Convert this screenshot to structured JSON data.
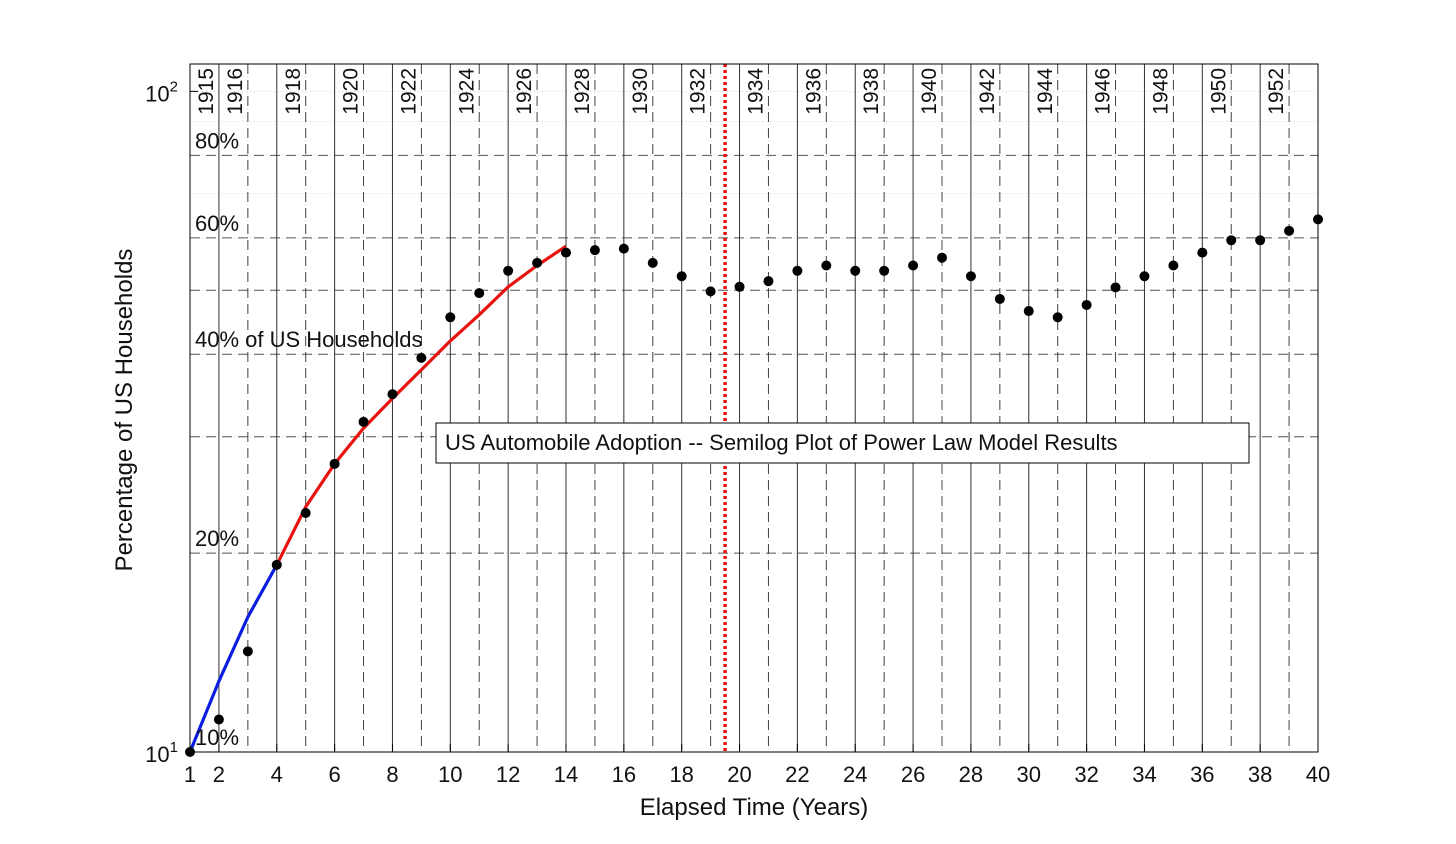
{
  "chart_data": {
    "type": "scatter",
    "title": "US Automobile Adoption -- Semilog Plot of Power Law Model Results",
    "xlabel": "Elapsed Time (Years)",
    "ylabel": "Percentage of US Households",
    "yscale": "log",
    "xlim": [
      1,
      40
    ],
    "ylim": [
      10,
      110
    ],
    "x_ticks": [
      {
        "value": 1,
        "label": "1"
      },
      {
        "value": 2,
        "label": "2"
      },
      {
        "value": 4,
        "label": "4"
      },
      {
        "value": 6,
        "label": "6"
      },
      {
        "value": 8,
        "label": "8"
      },
      {
        "value": 10,
        "label": "10"
      },
      {
        "value": 12,
        "label": "12"
      },
      {
        "value": 14,
        "label": "14"
      },
      {
        "value": 16,
        "label": "16"
      },
      {
        "value": 18,
        "label": "18"
      },
      {
        "value": 20,
        "label": "20"
      },
      {
        "value": 22,
        "label": "22"
      },
      {
        "value": 24,
        "label": "24"
      },
      {
        "value": 26,
        "label": "26"
      },
      {
        "value": 28,
        "label": "28"
      },
      {
        "value": 30,
        "label": "30"
      },
      {
        "value": 32,
        "label": "32"
      },
      {
        "value": 34,
        "label": "34"
      },
      {
        "value": 36,
        "label": "36"
      },
      {
        "value": 38,
        "label": "38"
      },
      {
        "value": 40,
        "label": "40"
      }
    ],
    "y_ticks": [
      {
        "value": 10,
        "base": "10",
        "exp": "1"
      },
      {
        "value": 100,
        "base": "10",
        "exp": "2"
      }
    ],
    "year_lines": [
      {
        "x": 1,
        "label": "1915"
      },
      {
        "x": 2,
        "label": "1916"
      },
      {
        "x": 4,
        "label": "1918"
      },
      {
        "x": 6,
        "label": "1920"
      },
      {
        "x": 8,
        "label": "1922"
      },
      {
        "x": 10,
        "label": "1924"
      },
      {
        "x": 12,
        "label": "1926"
      },
      {
        "x": 14,
        "label": "1928"
      },
      {
        "x": 16,
        "label": "1930"
      },
      {
        "x": 18,
        "label": "1932"
      },
      {
        "x": 20,
        "label": "1934"
      },
      {
        "x": 22,
        "label": "1936"
      },
      {
        "x": 24,
        "label": "1938"
      },
      {
        "x": 26,
        "label": "1940"
      },
      {
        "x": 28,
        "label": "1942"
      },
      {
        "x": 30,
        "label": "1944"
      },
      {
        "x": 32,
        "label": "1946"
      },
      {
        "x": 34,
        "label": "1948"
      },
      {
        "x": 36,
        "label": "1950"
      },
      {
        "x": 38,
        "label": "1952"
      }
    ],
    "pct_lines": [
      {
        "y": 10,
        "label": "10%"
      },
      {
        "y": 20,
        "label": "20%"
      },
      {
        "y": 40,
        "label": "40% of US Households"
      },
      {
        "y": 60,
        "label": "60%"
      },
      {
        "y": 80,
        "label": "80%"
      }
    ],
    "dashed_horizontal": [
      30,
      50
    ],
    "red_marker_x": 19.5,
    "series": [
      {
        "type": "scatter",
        "color": "#000000",
        "x": [
          1,
          2,
          3,
          4,
          5,
          6,
          7,
          8,
          9,
          10,
          11,
          12,
          13,
          14,
          15,
          16,
          17,
          18,
          19,
          20,
          21,
          22,
          23,
          24,
          25,
          26,
          27,
          28,
          29,
          30,
          31,
          32,
          33,
          34,
          35,
          36,
          37,
          38,
          39,
          40
        ],
        "y": [
          10,
          11.2,
          14.2,
          19.2,
          23.0,
          27.3,
          31.6,
          34.8,
          39.5,
          45.5,
          49.5,
          53.5,
          55.0,
          57.0,
          57.5,
          57.8,
          55.0,
          52.5,
          49.8,
          50.6,
          51.6,
          53.5,
          54.5,
          53.5,
          53.5,
          54.5,
          56.0,
          52.5,
          48.5,
          46.5,
          45.5,
          47.5,
          50.5,
          52.5,
          54.5,
          57.0,
          59.5,
          59.5,
          61.5,
          64.0
        ]
      },
      {
        "type": "line",
        "color": "#0b1ee0",
        "x": [
          1,
          2,
          3,
          4
        ],
        "y": [
          10,
          12.8,
          16.0,
          19.2
        ]
      },
      {
        "type": "line",
        "color": "#e8130f",
        "x": [
          4,
          5,
          6,
          7,
          8,
          9,
          10,
          11,
          12,
          13,
          14
        ],
        "y": [
          19.2,
          23.5,
          27.3,
          30.9,
          34.3,
          37.9,
          41.9,
          45.9,
          50.6,
          54.5,
          58.3
        ]
      }
    ]
  }
}
